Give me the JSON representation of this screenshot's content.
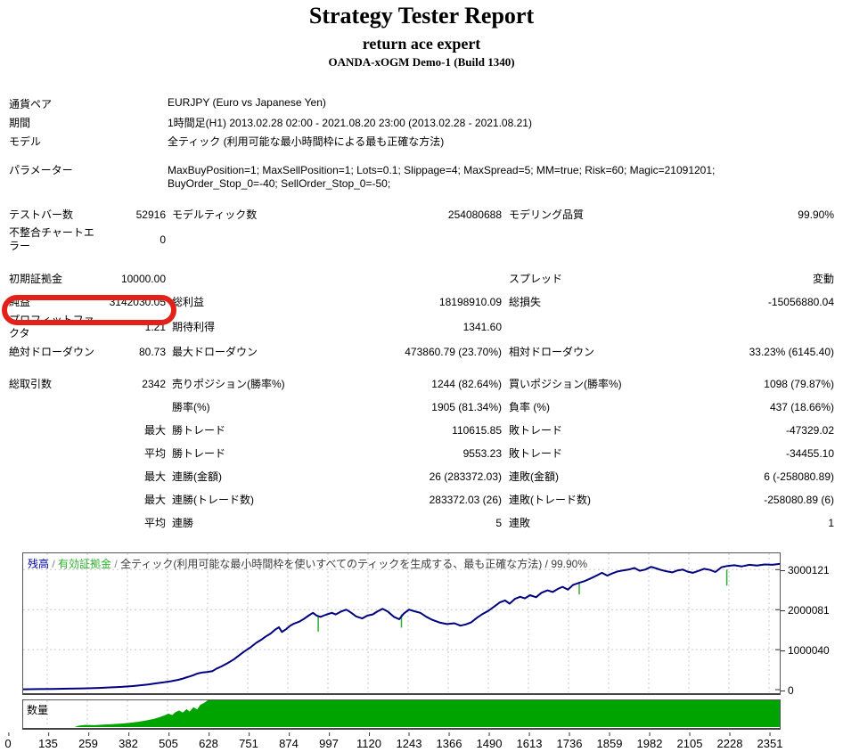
{
  "header": {
    "title": "Strategy Tester Report",
    "subtitle": "return ace expert",
    "server": "OANDA-xOGM Demo-1 (Build 1340)"
  },
  "info_rows": [
    {
      "label": "通貨ペア",
      "value": "EURJPY (Euro vs Japanese Yen)"
    },
    {
      "label": "期間",
      "value": "1時間足(H1) 2013.02.28 02:00 - 2021.08.20 23:00 (2013.02.28 - 2021.08.21)"
    },
    {
      "label": "モデル",
      "value": "全ティック (利用可能な最小時間枠による最も正確な方法)"
    },
    {
      "label": "パラメーター",
      "value": "MaxBuyPosition=1; MaxSellPosition=1; Lots=0.1; Slippage=4; MaxSpread=5; MM=true; Risk=60; Magic=21091201; BuyOrder_Stop_0=-40; SellOrder_Stop_0=-50;",
      "param": true
    }
  ],
  "stat_rows": [
    {
      "cells": [
        "テストバー数",
        "52916",
        "モデルティック数",
        "254080688",
        "モデリング品質",
        "99.90%"
      ]
    },
    {
      "cells": [
        "不整合チャートエラー",
        "0",
        "",
        "",
        "",
        ""
      ]
    },
    {
      "cells": [
        "初期証拠金",
        "10000.00",
        "",
        "",
        "スプレッド",
        "変動"
      ],
      "gap": 1
    },
    {
      "cells": [
        "純益",
        "3142030.05",
        "総利益",
        "18198910.09",
        "総損失",
        "-15056880.04"
      ],
      "circled": true
    },
    {
      "cells": [
        "プロフィットファクタ",
        "1.21",
        "期待利得",
        "1341.60",
        "",
        ""
      ]
    },
    {
      "cells": [
        "絶対ドローダウン",
        "80.73",
        "最大ドローダウン",
        "473860.79 (23.70%)",
        "相対ドローダウン",
        "33.23% (6145.40)"
      ]
    },
    {
      "cells": [
        "総取引数",
        "2342",
        "売りポジション(勝率%)",
        "1244 (82.64%)",
        "買いポジション(勝率%)",
        "1098 (79.87%)"
      ],
      "gap": 2
    },
    {
      "cells": [
        "",
        "",
        "勝率(%)",
        "1905 (81.34%)",
        "負率 (%)",
        "437 (18.66%)"
      ]
    },
    {
      "cells": [
        "",
        "最大",
        "勝トレード",
        "110615.85",
        "敗トレード",
        "-47329.02"
      ]
    },
    {
      "cells": [
        "",
        "平均",
        "勝トレード",
        "9553.23",
        "敗トレード",
        "-34455.10"
      ]
    },
    {
      "cells": [
        "",
        "最大",
        "連勝(金額)",
        "26 (283372.03)",
        "連敗(金額)",
        "6 (-258080.89)"
      ]
    },
    {
      "cells": [
        "",
        "最大",
        "連勝(トレード数)",
        "283372.03 (26)",
        "連敗(トレード数)",
        "-258080.89 (6)"
      ]
    },
    {
      "cells": [
        "",
        "平均",
        "連勝",
        "5",
        "連敗",
        "1"
      ]
    }
  ],
  "annotation": {
    "type": "red-circle",
    "around": "純益 3142030.05",
    "color": "#e32119"
  },
  "chart_data": {
    "type": "line",
    "legend": {
      "balance_label": "残高",
      "equity_label": "有効証拠金",
      "model_label": "全ティック(利用可能な最小時間枠を使いすべてのティックを生成する、最も正確な方法)",
      "quality_label": "99.90%",
      "separator": " / "
    },
    "volume_title": "数量",
    "y_ticks": [
      3000121,
      2000081,
      1000040,
      0
    ],
    "x_ticks": [
      0,
      135,
      259,
      382,
      505,
      628,
      751,
      874,
      997,
      1120,
      1243,
      1366,
      1490,
      1613,
      1736,
      1859,
      1982,
      2105,
      2228,
      2351
    ],
    "colors": {
      "balance": "#000080",
      "equity": "#2eaf2e",
      "volume": "#00a400",
      "grid": "#c9c9c9"
    },
    "initial_deposit": 10000.0,
    "final_balance": 3152030.05,
    "balance_curve_units": "fraction of x-range, value in millions",
    "balance_curve": [
      [
        0,
        0.01
      ],
      [
        0.02,
        0.013
      ],
      [
        0.04,
        0.018
      ],
      [
        0.06,
        0.025
      ],
      [
        0.08,
        0.032
      ],
      [
        0.1,
        0.042
      ],
      [
        0.115,
        0.055
      ],
      [
        0.13,
        0.07
      ],
      [
        0.145,
        0.09
      ],
      [
        0.155,
        0.11
      ],
      [
        0.165,
        0.13
      ],
      [
        0.175,
        0.155
      ],
      [
        0.185,
        0.18
      ],
      [
        0.195,
        0.21
      ],
      [
        0.205,
        0.245
      ],
      [
        0.21,
        0.27
      ],
      [
        0.215,
        0.3
      ],
      [
        0.22,
        0.33
      ],
      [
        0.225,
        0.36
      ],
      [
        0.23,
        0.4
      ],
      [
        0.237,
        0.43
      ],
      [
        0.243,
        0.44
      ],
      [
        0.25,
        0.46
      ],
      [
        0.255,
        0.52
      ],
      [
        0.262,
        0.58
      ],
      [
        0.27,
        0.66
      ],
      [
        0.278,
        0.75
      ],
      [
        0.285,
        0.85
      ],
      [
        0.292,
        0.95
      ],
      [
        0.3,
        1.05
      ],
      [
        0.308,
        1.17
      ],
      [
        0.315,
        1.25
      ],
      [
        0.32,
        1.32
      ],
      [
        0.327,
        1.4
      ],
      [
        0.333,
        1.5
      ],
      [
        0.338,
        1.56
      ],
      [
        0.342,
        1.44
      ],
      [
        0.348,
        1.52
      ],
      [
        0.353,
        1.6
      ],
      [
        0.358,
        1.65
      ],
      [
        0.365,
        1.7
      ],
      [
        0.372,
        1.78
      ],
      [
        0.378,
        1.86
      ],
      [
        0.383,
        1.92
      ],
      [
        0.388,
        1.85
      ],
      [
        0.393,
        1.82
      ],
      [
        0.4,
        1.87
      ],
      [
        0.408,
        1.92
      ],
      [
        0.413,
        1.88
      ],
      [
        0.42,
        1.95
      ],
      [
        0.427,
        2.0
      ],
      [
        0.433,
        1.93
      ],
      [
        0.44,
        1.83
      ],
      [
        0.448,
        1.78
      ],
      [
        0.455,
        1.85
      ],
      [
        0.462,
        1.88
      ],
      [
        0.468,
        1.95
      ],
      [
        0.475,
        2.02
      ],
      [
        0.482,
        1.95
      ],
      [
        0.49,
        1.82
      ],
      [
        0.497,
        1.76
      ],
      [
        0.503,
        1.9
      ],
      [
        0.51,
        2.0
      ],
      [
        0.517,
        1.96
      ],
      [
        0.525,
        1.92
      ],
      [
        0.533,
        1.82
      ],
      [
        0.54,
        1.75
      ],
      [
        0.55,
        1.68
      ],
      [
        0.56,
        1.64
      ],
      [
        0.57,
        1.66
      ],
      [
        0.578,
        1.6
      ],
      [
        0.585,
        1.63
      ],
      [
        0.592,
        1.68
      ],
      [
        0.6,
        1.8
      ],
      [
        0.608,
        1.9
      ],
      [
        0.615,
        1.97
      ],
      [
        0.623,
        2.08
      ],
      [
        0.63,
        2.18
      ],
      [
        0.637,
        2.23
      ],
      [
        0.643,
        2.15
      ],
      [
        0.65,
        2.27
      ],
      [
        0.657,
        2.32
      ],
      [
        0.663,
        2.28
      ],
      [
        0.67,
        2.36
      ],
      [
        0.678,
        2.31
      ],
      [
        0.685,
        2.42
      ],
      [
        0.693,
        2.48
      ],
      [
        0.7,
        2.44
      ],
      [
        0.707,
        2.52
      ],
      [
        0.713,
        2.57
      ],
      [
        0.72,
        2.5
      ],
      [
        0.727,
        2.62
      ],
      [
        0.735,
        2.67
      ],
      [
        0.743,
        2.72
      ],
      [
        0.75,
        2.78
      ],
      [
        0.758,
        2.85
      ],
      [
        0.765,
        2.92
      ],
      [
        0.772,
        2.85
      ],
      [
        0.778,
        2.9
      ],
      [
        0.785,
        2.95
      ],
      [
        0.793,
        2.98
      ],
      [
        0.8,
        3.0
      ],
      [
        0.808,
        3.04
      ],
      [
        0.815,
        2.97
      ],
      [
        0.822,
        3.0
      ],
      [
        0.83,
        3.07
      ],
      [
        0.837,
        3.03
      ],
      [
        0.843,
        2.99
      ],
      [
        0.85,
        2.96
      ],
      [
        0.858,
        2.93
      ],
      [
        0.865,
        2.98
      ],
      [
        0.872,
        3.0
      ],
      [
        0.878,
        2.95
      ],
      [
        0.885,
        2.92
      ],
      [
        0.893,
        2.97
      ],
      [
        0.9,
        3.02
      ],
      [
        0.908,
        2.99
      ],
      [
        0.915,
        2.94
      ],
      [
        0.923,
        3.06
      ],
      [
        0.93,
        3.09
      ],
      [
        0.94,
        3.11
      ],
      [
        0.95,
        3.08
      ],
      [
        0.96,
        3.12
      ],
      [
        0.97,
        3.1
      ],
      [
        0.98,
        3.13
      ],
      [
        0.99,
        3.12
      ],
      [
        1,
        3.142
      ]
    ],
    "equity_spikes": [
      [
        0.39,
        1.85,
        1.45
      ],
      [
        0.5,
        1.88,
        1.55
      ],
      [
        0.735,
        2.65,
        2.38
      ],
      [
        0.93,
        3.0,
        2.6
      ]
    ],
    "volume_profile": [
      [
        0,
        0
      ],
      [
        0.068,
        0
      ],
      [
        0.073,
        0.05
      ],
      [
        0.082,
        0.08
      ],
      [
        0.094,
        0.07
      ],
      [
        0.106,
        0.09
      ],
      [
        0.118,
        0.11
      ],
      [
        0.13,
        0.13
      ],
      [
        0.141,
        0.16
      ],
      [
        0.153,
        0.2
      ],
      [
        0.163,
        0.25
      ],
      [
        0.172,
        0.3
      ],
      [
        0.179,
        0.36
      ],
      [
        0.186,
        0.43
      ],
      [
        0.192,
        0.5
      ],
      [
        0.197,
        0.45
      ],
      [
        0.201,
        0.55
      ],
      [
        0.206,
        0.62
      ],
      [
        0.211,
        0.54
      ],
      [
        0.216,
        0.67
      ],
      [
        0.22,
        0.58
      ],
      [
        0.225,
        0.74
      ],
      [
        0.23,
        0.66
      ],
      [
        0.234,
        0.83
      ],
      [
        0.239,
        0.9
      ],
      [
        0.244,
        1
      ],
      [
        1,
        1
      ]
    ]
  }
}
